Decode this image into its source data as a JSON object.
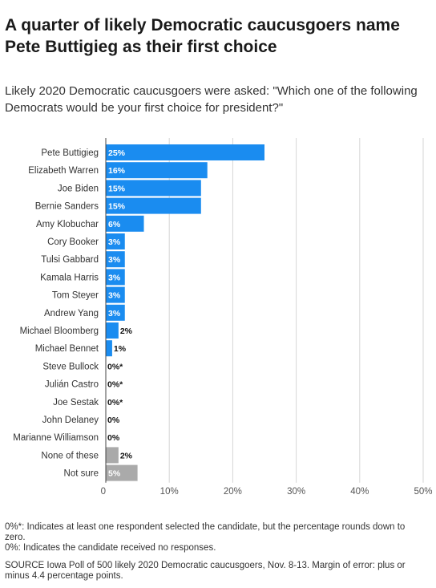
{
  "title": "A quarter of likely Democratic caucusgoers name Pete Buttigieg as their first choice",
  "subtitle": "Likely 2020 Democratic caucusgoers were asked: \"Which one of the following Democrats would be your first choice for president?\"",
  "chart_data": {
    "type": "bar",
    "orientation": "horizontal",
    "categories": [
      "Pete Buttigieg",
      "Elizabeth Warren",
      "Joe Biden",
      "Bernie Sanders",
      "Amy Klobuchar",
      "Cory Booker",
      "Tulsi Gabbard",
      "Kamala Harris",
      "Tom Steyer",
      "Andrew Yang",
      "Michael Bloomberg",
      "Michael Bennet",
      "Steve Bullock",
      "Julián Castro",
      "Joe Sestak",
      "John Delaney",
      "Marianne Williamson",
      "None of these",
      "Not sure"
    ],
    "values": [
      25,
      16,
      15,
      15,
      6,
      3,
      3,
      3,
      3,
      3,
      2,
      1,
      0,
      0,
      0,
      0,
      0,
      2,
      5
    ],
    "labels": [
      "25%",
      "16%",
      "15%",
      "15%",
      "6%",
      "3%",
      "3%",
      "3%",
      "3%",
      "3%",
      "2%",
      "1%",
      "0%*",
      "0%*",
      "0%*",
      "0%",
      "0%",
      "2%",
      "5%"
    ],
    "bar_colors": [
      "#1a8cf0",
      "#1a8cf0",
      "#1a8cf0",
      "#1a8cf0",
      "#1a8cf0",
      "#1a8cf0",
      "#1a8cf0",
      "#1a8cf0",
      "#1a8cf0",
      "#1a8cf0",
      "#1a8cf0",
      "#1a8cf0",
      "#1a8cf0",
      "#1a8cf0",
      "#1a8cf0",
      "#1a8cf0",
      "#1a8cf0",
      "#aaaaaa",
      "#aaaaaa"
    ],
    "xticks": [
      0,
      10,
      20,
      30,
      40,
      50
    ],
    "xtick_labels": [
      "0",
      "10%",
      "20%",
      "30%",
      "40%",
      "50%"
    ],
    "xlim": [
      0,
      50
    ],
    "grid": true,
    "xlabel": "",
    "ylabel": ""
  },
  "footnotes": [
    "0%*: Indicates at least one respondent selected the candidate, but the percentage rounds down to zero.",
    "0%: Indicates the candidate received no responses."
  ],
  "source": "SOURCE Iowa Poll of 500 likely 2020 Democratic caucusgoers, Nov. 8-13. Margin of error: plus or minus 4.4 percentage points."
}
